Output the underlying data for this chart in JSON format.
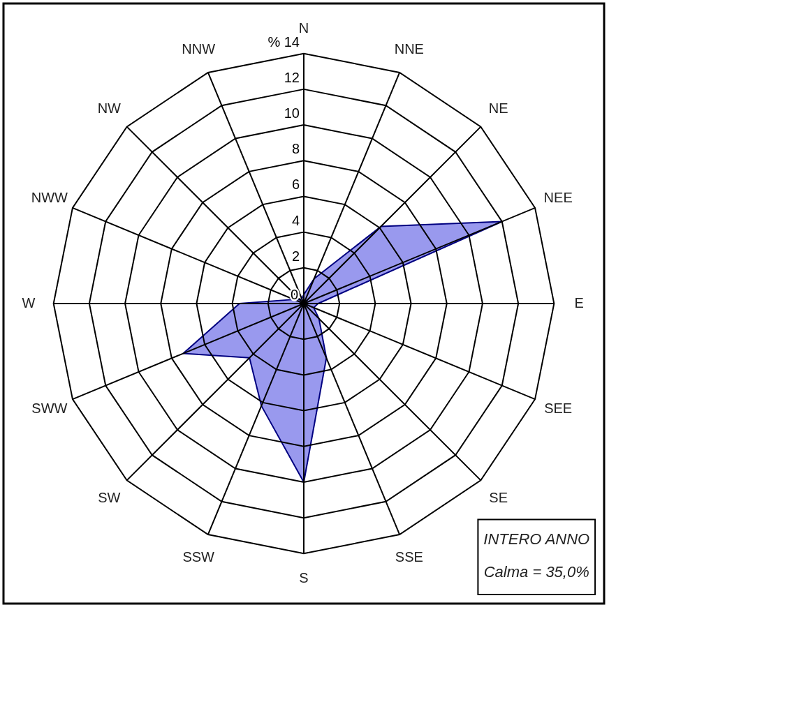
{
  "chart_data": {
    "type": "radar",
    "categories": [
      "N",
      "NNE",
      "NE",
      "NEE",
      "E",
      "SEE",
      "SE",
      "SSE",
      "S",
      "SSW",
      "SW",
      "SWW",
      "W",
      "NWW",
      "NW",
      "NNW"
    ],
    "series": [
      {
        "color": "#9999ee",
        "values": [
          0.5,
          1.5,
          6.1,
          12.0,
          0.8,
          0.6,
          1.2,
          3.3,
          10.0,
          6.2,
          4.3,
          7.3,
          3.6,
          0.6,
          0.3,
          0.3
        ]
      }
    ],
    "ylim": [
      0,
      14
    ],
    "yticks": [
      0,
      2,
      4,
      6,
      8,
      10,
      12,
      {
        "value": 14,
        "label": "% 14"
      }
    ],
    "grid": true,
    "annotations": [
      "INTERO ANNO",
      "Calma = 35,0%"
    ]
  }
}
